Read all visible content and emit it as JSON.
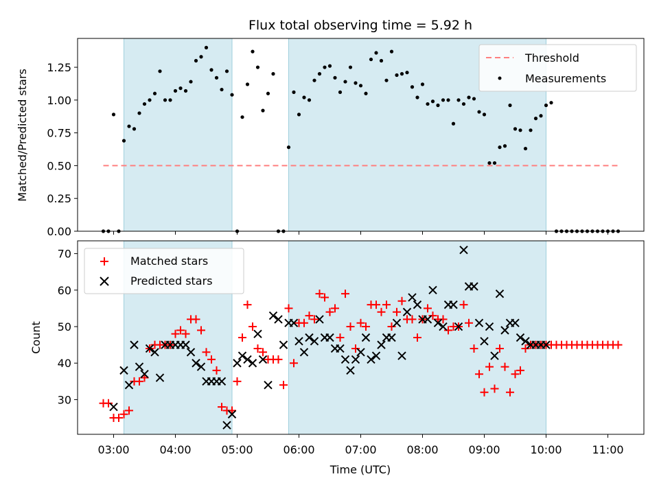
{
  "chart_data": [
    {
      "type": "scatter",
      "title": "Flux total observing time = 5.92 h",
      "xlabel": "",
      "ylabel": "Matched/Predicted stars",
      "xlim": [
        "02:25",
        "11:35"
      ],
      "ylim": [
        0,
        1.47
      ],
      "yticks": [
        "0.00",
        "0.25",
        "0.50",
        "0.75",
        "1.00",
        "1.25"
      ],
      "ytick_values": [
        0,
        0.25,
        0.5,
        0.75,
        1.0,
        1.25
      ],
      "legend_position": "top-right",
      "shaded_intervals": [
        [
          "03:10",
          "04:55"
        ],
        [
          "05:50",
          "10:00"
        ]
      ],
      "threshold": {
        "name": "Threshold",
        "value": 0.5,
        "x_start": "02:50",
        "x_end": "11:10",
        "color": "#ff7f7f"
      },
      "series": [
        {
          "name": "Measurements",
          "color": "#000000",
          "x": [
            "02:50",
            "02:55",
            "03:00",
            "03:05",
            "03:10",
            "03:15",
            "03:20",
            "03:25",
            "03:30",
            "03:35",
            "03:40",
            "03:45",
            "03:50",
            "03:55",
            "04:00",
            "04:05",
            "04:10",
            "04:15",
            "04:20",
            "04:25",
            "04:30",
            "04:35",
            "04:40",
            "04:45",
            "04:50",
            "04:55",
            "05:00",
            "05:05",
            "05:10",
            "05:15",
            "05:20",
            "05:25",
            "05:30",
            "05:35",
            "05:40",
            "05:45",
            "05:50",
            "05:55",
            "06:00",
            "06:05",
            "06:10",
            "06:15",
            "06:20",
            "06:25",
            "06:30",
            "06:35",
            "06:40",
            "06:45",
            "06:50",
            "06:55",
            "07:00",
            "07:05",
            "07:10",
            "07:15",
            "07:20",
            "07:25",
            "07:30",
            "07:35",
            "07:40",
            "07:45",
            "07:50",
            "07:55",
            "08:00",
            "08:05",
            "08:10",
            "08:15",
            "08:20",
            "08:25",
            "08:30",
            "08:35",
            "08:40",
            "08:45",
            "08:50",
            "08:55",
            "09:00",
            "09:05",
            "09:10",
            "09:15",
            "09:20",
            "09:25",
            "09:30",
            "09:35",
            "09:40",
            "09:45",
            "09:50",
            "09:55",
            "10:00",
            "10:05",
            "10:10",
            "10:15",
            "10:20",
            "10:25",
            "10:30",
            "10:35",
            "10:40",
            "10:45",
            "10:50",
            "10:55",
            "11:00",
            "11:05",
            "11:10"
          ],
          "y": [
            0.0,
            0.0,
            0.89,
            0.0,
            0.69,
            0.8,
            0.78,
            0.9,
            0.97,
            1.0,
            1.05,
            1.22,
            1.0,
            1.0,
            1.07,
            1.09,
            1.07,
            1.14,
            1.3,
            1.33,
            1.4,
            1.23,
            1.17,
            1.08,
            1.22,
            1.04,
            0.0,
            0.87,
            1.12,
            1.37,
            1.25,
            0.92,
            1.05,
            1.2,
            0.0,
            0.0,
            0.64,
            1.06,
            0.89,
            1.02,
            1.0,
            1.15,
            1.2,
            1.25,
            1.26,
            1.17,
            1.06,
            1.14,
            1.25,
            1.13,
            1.11,
            1.05,
            1.31,
            1.36,
            1.3,
            1.15,
            1.37,
            1.19,
            1.2,
            1.21,
            1.1,
            1.02,
            1.12,
            0.97,
            0.99,
            0.96,
            1.0,
            1.0,
            0.82,
            1.0,
            0.97,
            1.02,
            1.01,
            0.91,
            0.89,
            0.52,
            0.52,
            0.64,
            0.65,
            0.96,
            0.78,
            0.77,
            0.63,
            0.77,
            0.86,
            0.88,
            0.96,
            0.98,
            0.0,
            0.0,
            0.0,
            0.0,
            0.0,
            0.0,
            0.0,
            0.0,
            0.0,
            0.0,
            0.0,
            0.0,
            0.0
          ]
        }
      ]
    },
    {
      "type": "scatter",
      "title": "",
      "xlabel": "Time (UTC)",
      "ylabel": "Count",
      "xlim": [
        "02:25",
        "11:35"
      ],
      "ylim": [
        20.5,
        73.5
      ],
      "xticks": [
        "03:00",
        "04:00",
        "05:00",
        "06:00",
        "07:00",
        "08:00",
        "09:00",
        "10:00",
        "11:00"
      ],
      "yticks": [
        "30",
        "40",
        "50",
        "60",
        "70"
      ],
      "ytick_values": [
        30,
        40,
        50,
        60,
        70
      ],
      "legend_position": "top-left",
      "shaded_intervals": [
        [
          "03:10",
          "04:55"
        ],
        [
          "05:50",
          "10:00"
        ]
      ],
      "series": [
        {
          "name": "Matched stars",
          "marker": "plus",
          "color": "#ff0000",
          "x": [
            "02:50",
            "02:55",
            "03:00",
            "03:05",
            "03:10",
            "03:15",
            "03:20",
            "03:25",
            "03:30",
            "03:35",
            "03:40",
            "03:45",
            "03:50",
            "03:55",
            "04:00",
            "04:05",
            "04:10",
            "04:15",
            "04:20",
            "04:25",
            "04:30",
            "04:35",
            "04:40",
            "04:45",
            "04:50",
            "04:55",
            "05:00",
            "05:05",
            "05:10",
            "05:15",
            "05:20",
            "05:25",
            "05:30",
            "05:35",
            "05:40",
            "05:45",
            "05:50",
            "05:55",
            "06:00",
            "06:05",
            "06:10",
            "06:15",
            "06:20",
            "06:25",
            "06:30",
            "06:35",
            "06:40",
            "06:45",
            "06:50",
            "06:55",
            "07:00",
            "07:05",
            "07:10",
            "07:15",
            "07:20",
            "07:25",
            "07:30",
            "07:35",
            "07:40",
            "07:45",
            "07:50",
            "07:55",
            "08:00",
            "08:05",
            "08:10",
            "08:15",
            "08:20",
            "08:25",
            "08:30",
            "08:35",
            "08:40",
            "08:45",
            "08:50",
            "08:55",
            "09:00",
            "09:05",
            "09:10",
            "09:15",
            "09:20",
            "09:25",
            "09:30",
            "09:35",
            "09:40",
            "09:45",
            "09:50",
            "09:55",
            "10:00",
            "10:05",
            "10:10",
            "10:15",
            "10:20",
            "10:25",
            "10:30",
            "10:35",
            "10:40",
            "10:45",
            "10:50",
            "10:55",
            "11:00",
            "11:05",
            "11:10"
          ],
          "y": [
            29,
            29,
            25,
            25,
            26,
            27,
            35,
            35,
            36,
            44,
            45,
            45,
            45,
            45,
            48,
            49,
            48,
            52,
            52,
            49,
            43,
            41,
            38,
            28,
            27,
            27,
            35,
            47,
            56,
            50,
            44,
            43,
            41,
            41,
            41,
            34,
            55,
            40,
            51,
            51,
            53,
            52,
            59,
            58,
            54,
            55,
            47,
            59,
            50,
            44,
            51,
            50,
            56,
            56,
            54,
            56,
            50,
            54,
            57,
            52,
            52,
            47,
            52,
            55,
            53,
            52,
            52,
            49,
            50,
            50,
            56,
            51,
            44,
            37,
            32,
            39,
            33,
            44,
            39,
            32,
            37,
            38,
            44,
            45,
            45,
            45,
            45,
            45,
            45,
            45,
            45,
            45,
            45,
            45,
            45,
            45,
            45,
            45,
            45,
            45,
            45
          ]
        },
        {
          "name": "Predicted stars",
          "marker": "x",
          "color": "#000000",
          "x": [
            "03:00",
            "03:10",
            "03:15",
            "03:20",
            "03:25",
            "03:30",
            "03:35",
            "03:40",
            "03:45",
            "03:50",
            "03:55",
            "04:00",
            "04:05",
            "04:10",
            "04:15",
            "04:20",
            "04:25",
            "04:30",
            "04:35",
            "04:40",
            "04:45",
            "04:50",
            "04:55",
            "05:00",
            "05:05",
            "05:10",
            "05:15",
            "05:20",
            "05:25",
            "05:30",
            "05:35",
            "05:40",
            "05:45",
            "05:50",
            "05:55",
            "06:00",
            "06:05",
            "06:10",
            "06:15",
            "06:20",
            "06:25",
            "06:30",
            "06:35",
            "06:40",
            "06:45",
            "06:50",
            "06:55",
            "07:00",
            "07:05",
            "07:10",
            "07:15",
            "07:20",
            "07:25",
            "07:30",
            "07:35",
            "07:40",
            "07:45",
            "07:50",
            "07:55",
            "08:00",
            "08:05",
            "08:10",
            "08:15",
            "08:20",
            "08:25",
            "08:30",
            "08:35",
            "08:40",
            "08:45",
            "08:50",
            "08:55",
            "09:00",
            "09:05",
            "09:10",
            "09:15",
            "09:20",
            "09:25",
            "09:30",
            "09:35",
            "09:40",
            "09:45",
            "09:50",
            "09:55",
            "10:00"
          ],
          "y": [
            28,
            38,
            34,
            45,
            39,
            37,
            44,
            43,
            36,
            45,
            45,
            45,
            45,
            45,
            43,
            40,
            39,
            35,
            35,
            35,
            35,
            23,
            26,
            40,
            42,
            41,
            40,
            48,
            41,
            34,
            53,
            52,
            45,
            51,
            51,
            46,
            43,
            47,
            46,
            52,
            47,
            47,
            44,
            44,
            41,
            38,
            41,
            43,
            47,
            41,
            42,
            45,
            47,
            47,
            51,
            42,
            54,
            58,
            56,
            52,
            52,
            60,
            51,
            50,
            56,
            56,
            50,
            71,
            61,
            61,
            51,
            46,
            50,
            42,
            59,
            49,
            51,
            51,
            47,
            46,
            45,
            45,
            45,
            45
          ]
        }
      ]
    }
  ]
}
